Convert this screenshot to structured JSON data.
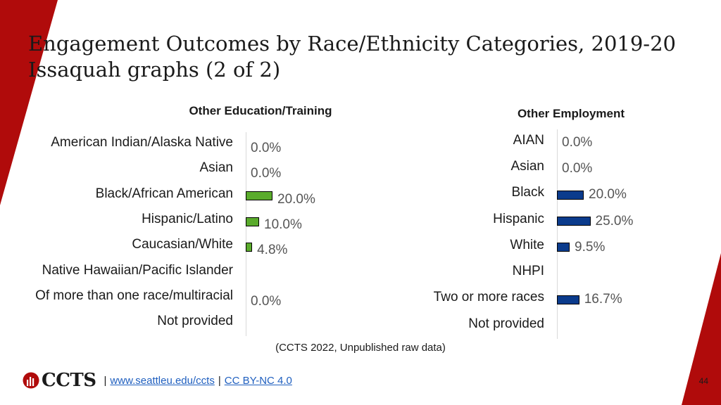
{
  "title_line1": "Engagement Outcomes by Race/Ethnicity Categories, 2019-20",
  "title_line2": "Issaquah graphs (2 of 2)",
  "source": "(CCTS 2022, Unpublished raw data)",
  "footer": {
    "logo_text": "CCTS",
    "separator": "|",
    "link1": "www.seattleu.edu/ccts",
    "link2": "CC BY-NC 4.0"
  },
  "page_number": "44",
  "colors": {
    "accent": "#b00b0b",
    "green": "#5aab2c",
    "navy": "#0b3b8c"
  },
  "chart_data": [
    {
      "type": "bar",
      "orientation": "horizontal",
      "title": "Other Education/Training",
      "categories": [
        "American Indian/Alaska Native",
        "Asian",
        "Black/African American",
        "Hispanic/Latino",
        "Caucasian/White",
        "Native Hawaiian/Pacific Islander",
        "Of more than one race/multiracial",
        "Not provided"
      ],
      "values": [
        0.0,
        0.0,
        20.0,
        10.0,
        4.8,
        null,
        0.0,
        null
      ],
      "value_labels": [
        "0.0%",
        "0.0%",
        "20.0%",
        "10.0%",
        "4.8%",
        "",
        "0.0%",
        ""
      ],
      "color": "#5aab2c"
    },
    {
      "type": "bar",
      "orientation": "horizontal",
      "title": "Other Employment",
      "categories": [
        "AIAN",
        "Asian",
        "Black",
        "Hispanic",
        "White",
        "NHPI",
        "Two or more races",
        "Not provided"
      ],
      "values": [
        0.0,
        0.0,
        20.0,
        25.0,
        9.5,
        null,
        16.7,
        null
      ],
      "value_labels": [
        "0.0%",
        "0.0%",
        "20.0%",
        "25.0%",
        "9.5%",
        "",
        "16.7%",
        ""
      ],
      "color": "#0b3b8c"
    }
  ]
}
